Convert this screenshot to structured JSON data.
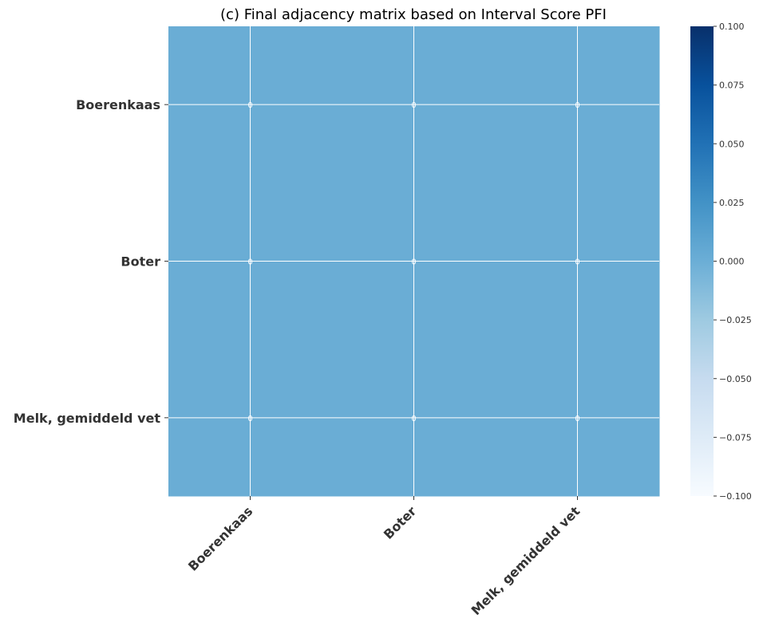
{
  "chart_data": {
    "type": "heatmap",
    "title": "(c) Final adjacency matrix based on Interval Score PFI",
    "rows": [
      "Boerenkaas",
      "Boter",
      "Melk, gemiddeld vet"
    ],
    "columns": [
      "Boerenkaas",
      "Boter",
      "Melk, gemiddeld vet"
    ],
    "values": [
      [
        0,
        0,
        0
      ],
      [
        0,
        0,
        0
      ],
      [
        0,
        0,
        0
      ]
    ],
    "cell_labels": [
      [
        "0",
        "0",
        "0"
      ],
      [
        "0",
        "0",
        "0"
      ],
      [
        "0",
        "0",
        "0"
      ]
    ],
    "colorbar": {
      "colormap": "Blues",
      "range": [
        -0.1,
        0.1
      ],
      "ticks": [
        "0.100",
        "0.075",
        "0.050",
        "0.025",
        "0.000",
        "−0.025",
        "−0.050",
        "−0.075",
        "−0.100"
      ]
    },
    "colors": {
      "cell": "#6aadd5",
      "grid": "#ffffff",
      "cmap_low": "#f7fbff",
      "cmap_mid": "#6aadd5",
      "cmap_high": "#08306b"
    },
    "grid": true
  }
}
